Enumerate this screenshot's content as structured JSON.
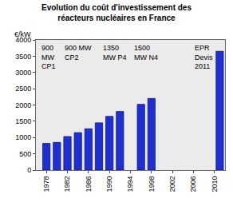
{
  "chart_data": {
    "type": "bar",
    "title": "Evolution du coût d'investissement des\nréacteurs nucléaires en France",
    "y_label": "€/kW",
    "x": [
      1978,
      1980,
      1982,
      1984,
      1986,
      1988,
      1990,
      1992,
      1996,
      1998,
      2011
    ],
    "values": [
      820,
      850,
      1030,
      1150,
      1270,
      1450,
      1650,
      1800,
      2020,
      2200,
      3650
    ],
    "color": "#1f2fd6",
    "xlim": [
      1976,
      2012
    ],
    "xticks": [
      1978,
      1982,
      1986,
      1990,
      1994,
      1998,
      2002,
      2006,
      2010
    ],
    "ylim": [
      0,
      4000
    ],
    "yticks": [
      0,
      500,
      1000,
      1500,
      2000,
      2500,
      3000,
      3500,
      4000
    ],
    "grid": false,
    "annotations": [
      {
        "text": "900\nMW\nCP1",
        "x": 1978.5
      },
      {
        "text": "900 MW\nCP2",
        "x": 1984
      },
      {
        "text": "1350\nMW P4",
        "x": 1991
      },
      {
        "text": "1500\nMW N4",
        "x": 1997
      },
      {
        "text": "EPR\nDevis\n2011",
        "x": 2008
      }
    ]
  }
}
